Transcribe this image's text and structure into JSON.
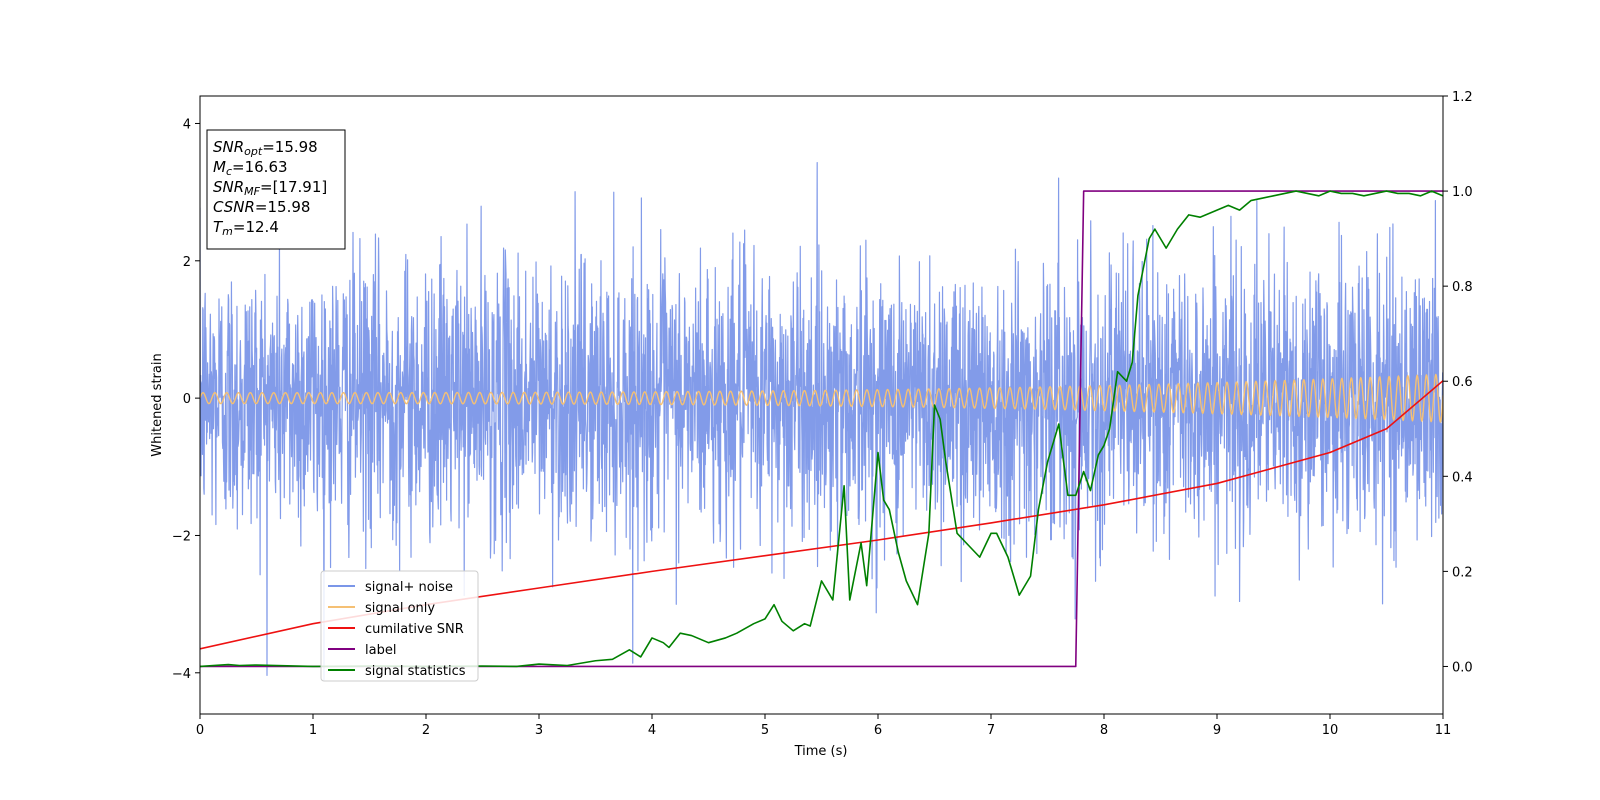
{
  "chart_data": {
    "type": "line",
    "title": "",
    "xlabel": "Time (s)",
    "ylabel": "Whitened strain",
    "xlim": [
      0,
      11
    ],
    "ylim": [
      -4.6,
      4.4
    ],
    "y2lim": [
      -0.1,
      1.2
    ],
    "xticks": [
      0,
      1,
      2,
      3,
      4,
      5,
      6,
      7,
      8,
      9,
      10,
      11
    ],
    "yticks": [
      -4,
      -2,
      0,
      2,
      4
    ],
    "y2ticks": [
      "0.0",
      "0.2",
      "0.4",
      "0.6",
      "0.8",
      "1.0",
      "1.2"
    ],
    "grid": false,
    "legend_position": "lower-left",
    "info_box": {
      "position": "upper-left",
      "lines": [
        {
          "sym": "SNR",
          "sub": "opt",
          "val": "=15.98"
        },
        {
          "sym": "M",
          "sub": "c",
          "val": "=16.63"
        },
        {
          "sym": "SNR",
          "sub": "MF",
          "val": "=[17.91]"
        },
        {
          "sym": "CSNR",
          "sub": "",
          "val": "=15.98"
        },
        {
          "sym": "T",
          "sub": "m",
          "val": "=12.4"
        }
      ]
    },
    "series": [
      {
        "name": "signal+ noise",
        "axis": "left",
        "color": "#7b96e8",
        "style": "dense-noise",
        "approx_range": [
          -4.1,
          4.0
        ],
        "typical_amplitude": 2.5
      },
      {
        "name": "signal only",
        "axis": "left",
        "color": "#f5c074",
        "style": "chirp",
        "amplitude_start": 0.08,
        "amplitude_end": 0.35
      },
      {
        "name": "cumilative SNR",
        "axis": "right",
        "color": "#ee1111",
        "x": [
          0,
          1,
          2,
          3,
          4,
          5,
          6,
          7,
          8,
          9,
          10,
          10.5,
          11
        ],
        "values": [
          0.037,
          0.09,
          0.13,
          0.165,
          0.2,
          0.233,
          0.266,
          0.302,
          0.34,
          0.385,
          0.45,
          0.5,
          0.601
        ]
      },
      {
        "name": "label",
        "axis": "right",
        "color": "#800080",
        "x": [
          0,
          7.75,
          7.82,
          11
        ],
        "values": [
          0.0,
          0.0,
          1.0,
          1.0
        ]
      },
      {
        "name": "signal statistics",
        "axis": "right",
        "color": "#008000",
        "x": [
          0,
          0.25,
          0.35,
          0.5,
          1,
          1.5,
          2,
          2.5,
          2.8,
          3,
          3.25,
          3.5,
          3.65,
          3.8,
          3.9,
          4,
          4.1,
          4.15,
          4.25,
          4.35,
          4.5,
          4.65,
          4.75,
          4.9,
          5.0,
          5.08,
          5.15,
          5.25,
          5.35,
          5.4,
          5.5,
          5.6,
          5.7,
          5.75,
          5.85,
          5.9,
          6.0,
          6.05,
          6.1,
          6.18,
          6.25,
          6.35,
          6.45,
          6.5,
          6.55,
          6.6,
          6.7,
          6.8,
          6.9,
          7.0,
          7.05,
          7.15,
          7.25,
          7.35,
          7.42,
          7.5,
          7.6,
          7.68,
          7.75,
          7.82,
          7.88,
          7.95,
          8.0,
          8.05,
          8.12,
          8.2,
          8.25,
          8.3,
          8.4,
          8.45,
          8.5,
          8.55,
          8.6,
          8.65,
          8.75,
          8.85,
          8.95,
          9.0,
          9.1,
          9.2,
          9.3,
          9.4,
          9.5,
          9.6,
          9.7,
          9.8,
          9.9,
          10.0,
          10.1,
          10.2,
          10.3,
          10.4,
          10.5,
          10.6,
          10.7,
          10.8,
          10.9,
          11.0
        ],
        "values": [
          0.0,
          0.004,
          0.002,
          0.003,
          0.0,
          0.001,
          0.0,
          0.001,
          0.0,
          0.005,
          0.002,
          0.012,
          0.015,
          0.035,
          0.02,
          0.06,
          0.05,
          0.04,
          0.07,
          0.065,
          0.05,
          0.06,
          0.07,
          0.09,
          0.1,
          0.13,
          0.095,
          0.075,
          0.09,
          0.085,
          0.18,
          0.14,
          0.38,
          0.14,
          0.26,
          0.17,
          0.45,
          0.35,
          0.33,
          0.24,
          0.18,
          0.13,
          0.28,
          0.55,
          0.52,
          0.43,
          0.28,
          0.255,
          0.23,
          0.28,
          0.28,
          0.23,
          0.15,
          0.19,
          0.33,
          0.43,
          0.51,
          0.36,
          0.36,
          0.41,
          0.37,
          0.445,
          0.465,
          0.5,
          0.62,
          0.6,
          0.64,
          0.78,
          0.9,
          0.92,
          0.9,
          0.88,
          0.9,
          0.92,
          0.95,
          0.945,
          0.955,
          0.96,
          0.97,
          0.96,
          0.98,
          0.985,
          0.99,
          0.995,
          1.0,
          0.995,
          0.99,
          1.0,
          0.995,
          0.995,
          0.99,
          0.995,
          1.0,
          0.995,
          0.995,
          0.99,
          1.0,
          0.99
        ]
      }
    ]
  }
}
